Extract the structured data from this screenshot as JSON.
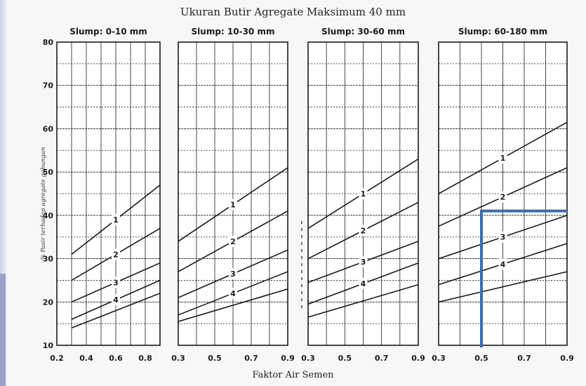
{
  "title": "Ukuran Butir Agregate Maksimum 40 mm",
  "xlabel": "Faktor Air Semen",
  "ylabel": "% Pasir terhadap agregate gabungan",
  "colors": {
    "ink": "#1a1a1a",
    "highlight": "#3b6ea8",
    "paper": "#ffffff"
  },
  "chart_data": {
    "type": "line",
    "ylim": [
      10,
      80
    ],
    "yticks": [
      10,
      20,
      30,
      40,
      50,
      60,
      70,
      80
    ],
    "grid": true,
    "panels": [
      {
        "title": "Slump: 0-10 mm",
        "xlim": [
          0.2,
          0.9
        ],
        "xticks": [
          0.2,
          0.4,
          0.6,
          0.8
        ],
        "xtick_labels": [
          "0.2",
          "0.4",
          "0.6",
          "0.8"
        ],
        "series": [
          {
            "name": "1",
            "x": [
              0.3,
              0.9
            ],
            "y": [
              31,
              47
            ]
          },
          {
            "name": "2",
            "x": [
              0.3,
              0.9
            ],
            "y": [
              25,
              37
            ]
          },
          {
            "name": "3",
            "x": [
              0.3,
              0.9
            ],
            "y": [
              20,
              29
            ]
          },
          {
            "name": "4",
            "x": [
              0.3,
              0.9
            ],
            "y": [
              16,
              25
            ]
          },
          {
            "name": "",
            "x": [
              0.3,
              0.9
            ],
            "y": [
              14,
              22
            ]
          }
        ]
      },
      {
        "title": "Slump: 10-30 mm",
        "xlim": [
          0.3,
          0.9
        ],
        "xticks": [
          0.3,
          0.5,
          0.7,
          0.9
        ],
        "xtick_labels": [
          "0.3",
          "0.5",
          "0.7",
          "0.9"
        ],
        "series": [
          {
            "name": "1",
            "x": [
              0.3,
              0.9
            ],
            "y": [
              34,
              51
            ]
          },
          {
            "name": "2",
            "x": [
              0.3,
              0.9
            ],
            "y": [
              27,
              41
            ]
          },
          {
            "name": "3",
            "x": [
              0.3,
              0.9
            ],
            "y": [
              21,
              32
            ]
          },
          {
            "name": "4",
            "x": [
              0.3,
              0.9
            ],
            "y": [
              17,
              27
            ]
          },
          {
            "name": "",
            "x": [
              0.3,
              0.9
            ],
            "y": [
              15.5,
              23
            ]
          }
        ]
      },
      {
        "title": "Slump: 30-60 mm",
        "xlim": [
          0.3,
          0.9
        ],
        "xticks": [
          0.3,
          0.5,
          0.7,
          0.9
        ],
        "xtick_labels": [
          "0.3",
          "0.5",
          "0.7",
          "0.9"
        ],
        "series": [
          {
            "name": "1",
            "x": [
              0.3,
              0.9
            ],
            "y": [
              37,
              53
            ]
          },
          {
            "name": "2",
            "x": [
              0.3,
              0.9
            ],
            "y": [
              30,
              43
            ]
          },
          {
            "name": "3",
            "x": [
              0.3,
              0.9
            ],
            "y": [
              24.5,
              34
            ]
          },
          {
            "name": "4",
            "x": [
              0.3,
              0.9
            ],
            "y": [
              19.5,
              29
            ]
          },
          {
            "name": "",
            "x": [
              0.3,
              0.9
            ],
            "y": [
              16.5,
              24
            ]
          }
        ]
      },
      {
        "title": "Slump: 60-180 mm",
        "xlim": [
          0.3,
          0.9
        ],
        "xticks": [
          0.3,
          0.5,
          0.7,
          0.9
        ],
        "xtick_labels": [
          "0.3",
          "0.5",
          "0.7",
          "0.9"
        ],
        "series": [
          {
            "name": "1",
            "x": [
              0.3,
              0.9
            ],
            "y": [
              45,
              61.5
            ]
          },
          {
            "name": "2",
            "x": [
              0.3,
              0.9
            ],
            "y": [
              37.5,
              51
            ]
          },
          {
            "name": "3",
            "x": [
              0.3,
              0.9
            ],
            "y": [
              30,
              40
            ]
          },
          {
            "name": "4",
            "x": [
              0.3,
              0.9
            ],
            "y": [
              24,
              33.5
            ]
          },
          {
            "name": "",
            "x": [
              0.3,
              0.9
            ],
            "y": [
              20,
              27
            ]
          }
        ],
        "annotation": {
          "x": 0.5,
          "y": 41
        }
      }
    ]
  }
}
